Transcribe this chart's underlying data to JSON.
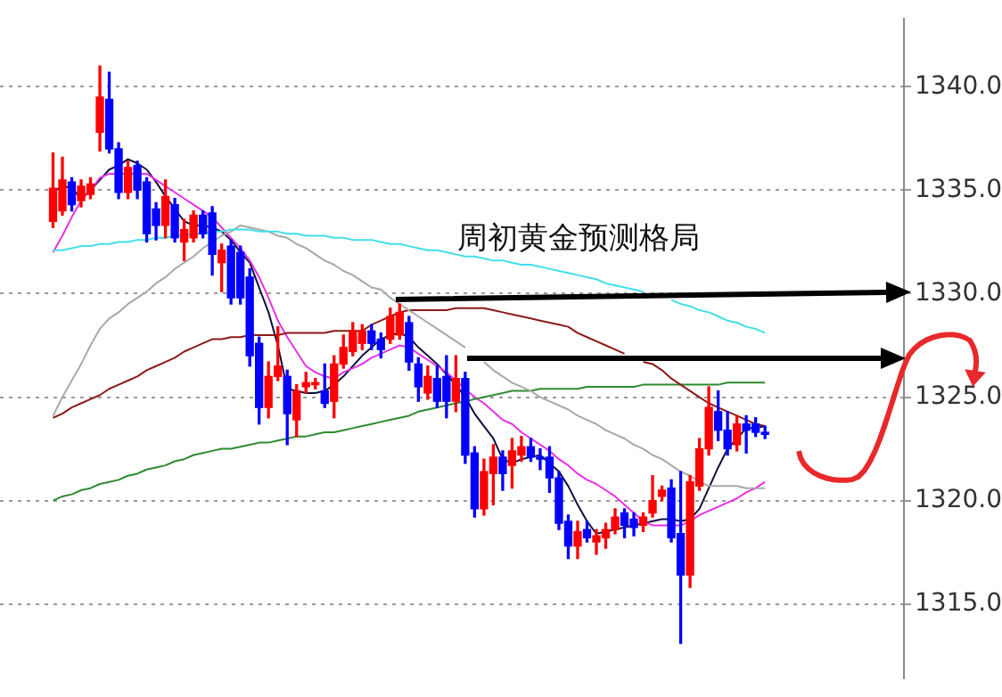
{
  "chart_data": {
    "type": "candlestick",
    "annotations": [
      "周初黄金预测格局"
    ],
    "categories": [
      null,
      null,
      null,
      null,
      null,
      null,
      null,
      null,
      null,
      null,
      null,
      null,
      null,
      null,
      null,
      null,
      null,
      null,
      null,
      null,
      null,
      null,
      null,
      null,
      null,
      null,
      null,
      null,
      null,
      null,
      null,
      null,
      null,
      null,
      null,
      null,
      null,
      null,
      null,
      null,
      null,
      null,
      null,
      null,
      null,
      null,
      null,
      null,
      null,
      null,
      null,
      null,
      null,
      null,
      null,
      null,
      null,
      null,
      null,
      null,
      null,
      null,
      null,
      null,
      null,
      null,
      null,
      null,
      null,
      null,
      null,
      null,
      null,
      null,
      null,
      null,
      null
    ],
    "ohlc": [
      [
        1333.5,
        1336.8,
        1333.2,
        1335.1
      ],
      [
        1334.0,
        1336.6,
        1333.8,
        1335.5
      ],
      [
        1335.4,
        1335.6,
        1334.0,
        1334.3
      ],
      [
        1334.5,
        1335.5,
        1334.2,
        1335.2
      ],
      [
        1334.8,
        1335.6,
        1334.6,
        1335.3
      ],
      [
        1337.8,
        1341.0,
        1336.9,
        1339.5
      ],
      [
        1339.4,
        1340.7,
        1336.8,
        1337.0
      ],
      [
        1337.0,
        1337.3,
        1334.6,
        1334.9
      ],
      [
        1334.9,
        1336.4,
        1334.6,
        1336.1
      ],
      [
        1336.2,
        1336.4,
        1334.6,
        1335.0
      ],
      [
        1335.4,
        1335.6,
        1332.5,
        1332.9
      ],
      [
        1334.1,
        1334.4,
        1332.6,
        1333.3
      ],
      [
        1333.3,
        1335.5,
        1332.7,
        1334.7
      ],
      [
        1334.3,
        1334.6,
        1332.5,
        1332.7
      ],
      [
        1332.5,
        1333.6,
        1331.6,
        1333.1
      ],
      [
        1332.7,
        1334.0,
        1332.5,
        1333.8
      ],
      [
        1333.8,
        1334.0,
        1332.7,
        1332.9
      ],
      [
        1333.9,
        1334.2,
        1330.9,
        1331.9
      ],
      [
        1331.5,
        1332.4,
        1330.1,
        1332.1
      ],
      [
        1332.3,
        1332.6,
        1329.5,
        1329.8
      ],
      [
        1332.0,
        1332.3,
        1329.5,
        1329.8
      ],
      [
        1330.8,
        1331.2,
        1326.5,
        1327.0
      ],
      [
        1327.6,
        1327.9,
        1323.7,
        1324.5
      ],
      [
        1324.5,
        1326.7,
        1324.0,
        1326.0
      ],
      [
        1326.0,
        1328.4,
        1325.8,
        1326.5
      ],
      [
        1326.0,
        1326.3,
        1322.7,
        1324.2
      ],
      [
        1323.9,
        1325.6,
        1323.1,
        1325.3
      ],
      [
        1325.5,
        1326.2,
        1325.2,
        1325.7
      ],
      [
        1325.6,
        1325.9,
        1325.4,
        1325.7
      ],
      [
        1325.3,
        1326.6,
        1324.5,
        1324.7
      ],
      [
        1324.8,
        1327.0,
        1324.0,
        1326.6
      ],
      [
        1326.6,
        1328.0,
        1326.4,
        1327.4
      ],
      [
        1327.2,
        1328.6,
        1327.0,
        1328.2
      ],
      [
        1327.6,
        1328.5,
        1327.3,
        1328.2
      ],
      [
        1328.2,
        1328.5,
        1327.3,
        1327.6
      ],
      [
        1327.8,
        1328.1,
        1326.9,
        1327.3
      ],
      [
        1327.8,
        1329.3,
        1327.6,
        1328.9
      ],
      [
        1328.0,
        1329.5,
        1327.8,
        1329.1
      ],
      [
        1328.6,
        1328.9,
        1326.3,
        1326.7
      ],
      [
        1326.6,
        1326.9,
        1324.8,
        1325.5
      ],
      [
        1325.2,
        1326.5,
        1324.9,
        1326.0
      ],
      [
        1325.9,
        1326.5,
        1324.5,
        1324.8
      ],
      [
        1326.0,
        1327.0,
        1324.0,
        1324.8
      ],
      [
        1324.8,
        1327.0,
        1324.3,
        1325.9
      ],
      [
        1325.9,
        1326.2,
        1321.8,
        1322.2
      ],
      [
        1322.3,
        1322.6,
        1319.2,
        1319.6
      ],
      [
        1319.6,
        1322.0,
        1319.3,
        1321.4
      ],
      [
        1321.3,
        1322.7,
        1319.8,
        1322.1
      ],
      [
        1322.1,
        1322.4,
        1320.5,
        1321.3
      ],
      [
        1321.7,
        1323.0,
        1320.6,
        1322.4
      ],
      [
        1322.2,
        1323.1,
        1321.9,
        1322.6
      ],
      [
        1322.6,
        1323.0,
        1321.9,
        1322.1
      ],
      [
        1322.1,
        1322.5,
        1321.5,
        1322.0
      ],
      [
        1322.1,
        1322.6,
        1320.4,
        1321.1
      ],
      [
        1321.1,
        1321.4,
        1318.6,
        1318.9
      ],
      [
        1319.0,
        1319.3,
        1317.2,
        1317.8
      ],
      [
        1317.8,
        1319.0,
        1317.2,
        1318.5
      ],
      [
        1318.6,
        1319.0,
        1318.0,
        1318.2
      ],
      [
        1318.0,
        1318.6,
        1317.4,
        1318.3
      ],
      [
        1318.2,
        1318.9,
        1317.7,
        1318.6
      ],
      [
        1318.6,
        1319.6,
        1318.4,
        1319.2
      ],
      [
        1319.4,
        1319.6,
        1318.2,
        1318.8
      ],
      [
        1319.1,
        1319.4,
        1318.3,
        1318.7
      ],
      [
        1318.8,
        1319.4,
        1318.5,
        1319.2
      ],
      [
        1319.4,
        1321.2,
        1319.2,
        1320.0
      ],
      [
        1320.2,
        1320.7,
        1320.0,
        1320.5
      ],
      [
        1320.6,
        1321.0,
        1318.0,
        1318.2
      ],
      [
        1318.4,
        1321.4,
        1313.1,
        1316.4
      ],
      [
        1316.4,
        1321.2,
        1315.8,
        1320.9
      ],
      [
        1320.7,
        1323.0,
        1320.5,
        1322.5
      ],
      [
        1322.5,
        1325.5,
        1322.2,
        1324.5
      ],
      [
        1324.3,
        1325.3,
        1322.9,
        1323.4
      ],
      [
        1323.4,
        1324.3,
        1322.2,
        1322.5
      ],
      [
        1322.7,
        1324.1,
        1322.4,
        1323.7
      ],
      [
        1323.7,
        1324.1,
        1322.3,
        1323.4
      ],
      [
        1323.7,
        1324.0,
        1323.1,
        1323.3
      ],
      [
        1323.3,
        1323.6,
        1323.0,
        1323.2
      ]
    ],
    "colors": [
      "#ff0000",
      "#ff0000",
      "#0000ff",
      "#ff0000",
      "#ff0000",
      "#ff0000",
      "#0000ff",
      "#0000ff",
      "#ff0000",
      "#0000ff",
      "#0000ff",
      "#0000ff",
      "#ff0000",
      "#0000ff",
      "#ff0000",
      "#ff0000",
      "#0000ff",
      "#0000ff",
      "#ff0000",
      "#0000ff",
      "#0000ff",
      "#0000ff",
      "#0000ff",
      "#ff0000",
      "#ff0000",
      "#0000ff",
      "#ff0000",
      "#ff0000",
      "#ff0000",
      "#0000ff",
      "#ff0000",
      "#ff0000",
      "#ff0000",
      "#ff0000",
      "#0000ff",
      "#0000ff",
      "#ff0000",
      "#ff0000",
      "#0000ff",
      "#0000ff",
      "#ff0000",
      "#0000ff",
      "#0000ff",
      "#ff0000",
      "#0000ff",
      "#0000ff",
      "#ff0000",
      "#ff0000",
      "#0000ff",
      "#ff0000",
      "#ff0000",
      "#0000ff",
      "#0000ff",
      "#0000ff",
      "#0000ff",
      "#0000ff",
      "#ff0000",
      "#0000ff",
      "#ff0000",
      "#ff0000",
      "#ff0000",
      "#0000ff",
      "#0000ff",
      "#ff0000",
      "#ff0000",
      "#ff0000",
      "#0000ff",
      "#0000ff",
      "#ff0000",
      "#ff0000",
      "#ff0000",
      "#0000ff",
      "#0000ff",
      "#ff0000",
      "#0000ff",
      "#0000ff",
      "#0000ff"
    ],
    "series": [
      {
        "type": "line",
        "color": "#40e0e8",
        "values": [
          1332.1,
          1332.1,
          1332.2,
          1332.3,
          1332.3,
          1332.4,
          1332.4,
          1332.5,
          1332.5,
          1332.6,
          1332.6,
          1332.7,
          1332.7,
          1332.8,
          1332.8,
          1332.9,
          1332.9,
          1333.0,
          1333.0,
          1333.1,
          1333.1,
          1333.1,
          1333.0,
          1333.0,
          1333.0,
          1332.9,
          1332.9,
          1332.8,
          1332.8,
          1332.8,
          1332.7,
          1332.7,
          1332.6,
          1332.6,
          1332.6,
          1332.5,
          1332.4,
          1332.4,
          1332.3,
          1332.2,
          1332.1,
          1332.1,
          1332.0,
          1331.9,
          1331.8,
          1331.8,
          1331.7,
          1331.6,
          1331.6,
          1331.5,
          1331.4,
          1331.4,
          1331.3,
          1331.2,
          1331.1,
          1331.0,
          1330.9,
          1330.8,
          1330.7,
          1330.5,
          1330.4,
          1330.3,
          1330.2,
          1330.1,
          null,
          null,
          1329.7,
          1329.5,
          1329.4,
          1329.2,
          1329.1,
          1328.9,
          1328.7,
          1328.6,
          1328.4,
          1328.3,
          1328.1
        ]
      },
      {
        "type": "line",
        "color": "#a8a8a8",
        "values": [
          1324.1,
          1325.0,
          1325.8,
          1326.6,
          1327.5,
          1328.3,
          1328.8,
          1329.1,
          1329.5,
          1329.8,
          1330.1,
          1330.5,
          1330.8,
          1331.2,
          1331.5,
          1331.8,
          1332.2,
          1332.5,
          1332.8,
          1333.0,
          1333.3,
          1333.2,
          1333.1,
          1333.0,
          1332.8,
          1332.7,
          1332.4,
          1332.2,
          1331.9,
          1331.6,
          1331.4,
          1331.1,
          1330.9,
          1330.6,
          1330.3,
          1330.2,
          1329.8,
          1329.5,
          1329.2,
          1328.9,
          1328.6,
          1328.3,
          1328.0,
          1327.7,
          1327.4,
          null,
          1326.7,
          1326.3,
          1326.0,
          1325.7,
          1325.5,
          1325.3,
          1325.0,
          1324.8,
          1324.6,
          1324.4,
          1324.1,
          1323.9,
          1323.7,
          1323.4,
          1323.2,
          1323.0,
          1322.7,
          1322.5,
          1322.2,
          1322.0,
          1321.7,
          1321.4,
          1321.2,
          1320.9,
          1320.7,
          1320.7,
          1320.7,
          1320.7,
          1320.6,
          1320.6,
          1320.6
        ]
      },
      {
        "type": "line",
        "color": "#8b1a1a",
        "values": [
          1324.0,
          1324.2,
          1324.5,
          1324.7,
          1324.9,
          1325.1,
          1325.4,
          1325.6,
          1325.8,
          1326.0,
          1326.3,
          1326.5,
          1326.7,
          1326.9,
          1327.2,
          1327.4,
          1327.6,
          1327.8,
          1327.8,
          1327.9,
          1327.9,
          1328.0,
          1328.0,
          1328.0,
          1328.0,
          1328.1,
          1328.1,
          1328.1,
          1328.1,
          1328.1,
          1328.2,
          1328.2,
          1328.2,
          1328.2,
          1328.5,
          1328.7,
          1328.9,
          1329.1,
          1329.2,
          1329.2,
          1329.2,
          1329.2,
          1329.2,
          1329.3,
          1329.3,
          1329.3,
          1329.3,
          1329.2,
          1329.1,
          1329.0,
          1328.9,
          1328.8,
          1328.7,
          1328.6,
          1328.5,
          1328.4,
          1328.1,
          1327.9,
          1327.7,
          1327.5,
          1327.3,
          1327.1,
          null,
          1326.7,
          1326.6,
          1326.3,
          1325.9,
          1325.6,
          1325.3,
          1325.0,
          1324.7,
          1324.5,
          1324.3,
          1324.1,
          1323.9,
          1323.7,
          1323.6
        ]
      },
      {
        "type": "line",
        "color": "#2e8b2e",
        "values": [
          1320.0,
          1320.2,
          1320.3,
          1320.5,
          1320.6,
          1320.8,
          1320.9,
          1321.0,
          1321.2,
          1321.3,
          1321.5,
          1321.6,
          1321.7,
          1321.9,
          1322.0,
          1322.2,
          1322.3,
          1322.4,
          1322.5,
          1322.5,
          1322.6,
          1322.7,
          1322.8,
          1322.8,
          1322.9,
          1323.0,
          1323.1,
          1323.1,
          1323.2,
          1323.3,
          1323.3,
          1323.4,
          1323.5,
          1323.6,
          1323.7,
          1323.8,
          1323.9,
          1324.0,
          1324.1,
          1324.3,
          1324.4,
          1324.5,
          1324.6,
          1324.7,
          1324.8,
          1324.9,
          1325.0,
          1325.1,
          1325.2,
          1325.3,
          1325.3,
          1325.3,
          1325.4,
          1325.4,
          1325.4,
          1325.4,
          1325.4,
          1325.5,
          1325.5,
          1325.5,
          1325.5,
          1325.5,
          1325.5,
          1325.6,
          1325.6,
          1325.6,
          1325.6,
          1325.6,
          1325.6,
          1325.6,
          1325.6,
          1325.6,
          1325.7,
          1325.7,
          1325.7,
          1325.7,
          1325.7
        ]
      },
      {
        "type": "line",
        "color": "#e830e8",
        "values": [
          1332.0,
          1332.8,
          1333.7,
          1334.5,
          1335.0,
          1335.6,
          1335.8,
          1335.8,
          1335.8,
          1335.8,
          1335.8,
          1335.5,
          1335.2,
          1334.9,
          1334.6,
          1334.3,
          1334.0,
          1333.7,
          1333.2,
          1332.7,
          1332.2,
          1331.6,
          1330.8,
          1329.8,
          1328.7,
          1327.9,
          1327.2,
          1326.5,
          1326.2,
          1326.0,
          1325.9,
          1326.2,
          1326.4,
          1326.6,
          1326.9,
          1327.1,
          1327.3,
          1327.5,
          1327.4,
          1327.1,
          1326.8,
          1326.5,
          1326.2,
          1325.8,
          1325.4,
          1325.0,
          1324.7,
          1324.3,
          1323.9,
          1323.7,
          1323.3,
          1323.0,
          1322.7,
          1322.4,
          1322.0,
          1321.7,
          1321.3,
          1321.0,
          1320.8,
          1320.5,
          1320.2,
          1319.8,
          1319.4,
          1319.0,
          1318.8,
          1318.8,
          1318.8,
          1318.8,
          1319.0,
          1319.3,
          1319.5,
          1319.7,
          1319.9,
          1320.1,
          1320.4,
          1320.6,
          1320.9
        ]
      },
      {
        "type": "line",
        "color": "#101040",
        "values": [
          1334.9,
          1335.2,
          1335.1,
          1334.6,
          1335.0,
          1335.5,
          1336.0,
          1336.2,
          1336.5,
          1336.3,
          1336.0,
          1335.4,
          1334.7,
          1334.1,
          1333.5,
          1333.3,
          1333.3,
          1333.2,
          1333.0,
          1332.6,
          1332.0,
          1331.5,
          1330.3,
          1329.1,
          1327.5,
          1325.4,
          1325.3,
          1325.2,
          1325.2,
          1325.3,
          1325.6,
          1326.0,
          1326.5,
          1327.0,
          1327.4,
          1327.8,
          1328.0,
          1328.1,
          1327.9,
          1327.4,
          1327.0,
          1326.6,
          1326.1,
          1325.6,
          1325.0,
          1324.2,
          1323.6,
          1323.0,
          1322.0,
          1321.8,
          1322.0,
          1322.1,
          1322.2,
          1321.8,
          1321.4,
          1320.7,
          1319.8,
          1319.0,
          1318.4,
          1318.5,
          1318.6,
          1318.7,
          1318.8,
          1318.9,
          1319.0,
          1319.1,
          1319.1,
          1319.0,
          1319.1,
          1319.6,
          1320.6,
          1321.6,
          1322.5,
          1323.0,
          1323.5,
          1323.5,
          1323.6
        ]
      }
    ],
    "ylim": [
      1311.4,
      1343.3
    ],
    "yticks": [
      {
        "value": 1315,
        "label": "1315.0"
      },
      {
        "value": 1320,
        "label": "1320.0"
      },
      {
        "value": 1325,
        "label": "1325.0"
      },
      {
        "value": 1330,
        "label": "1330.0"
      },
      {
        "value": 1335,
        "label": "1335.0"
      },
      {
        "value": 1340,
        "label": "1340.0"
      }
    ],
    "grid": "y",
    "tick_labels": "y"
  }
}
